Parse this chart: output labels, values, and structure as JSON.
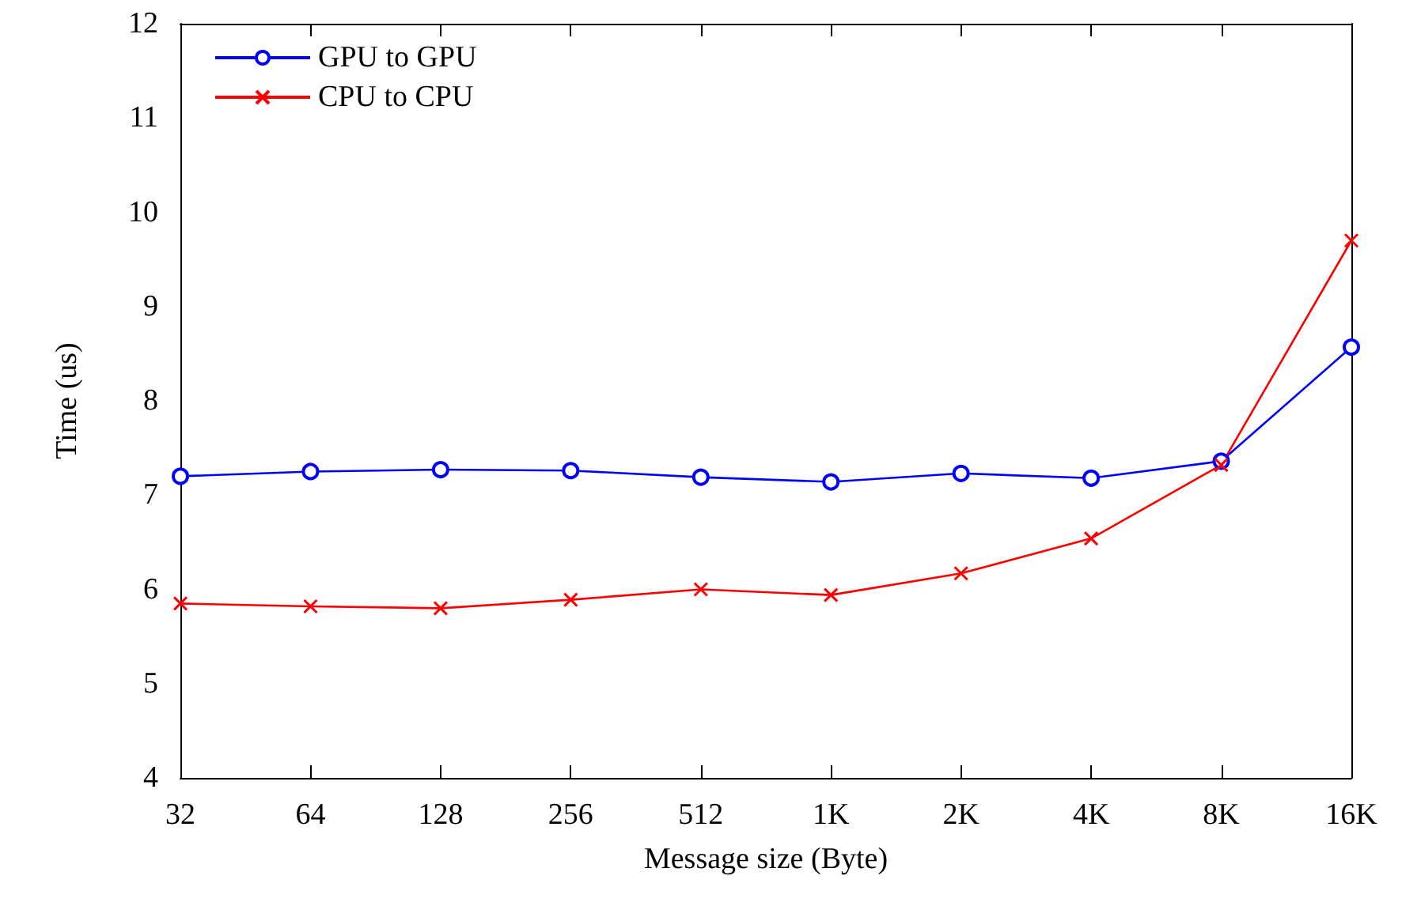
{
  "chart_data": {
    "type": "line",
    "xlabel": "Message size (Byte)",
    "ylabel": "Time (us)",
    "categories": [
      "32",
      "64",
      "128",
      "256",
      "512",
      "1K",
      "2K",
      "4K",
      "8K",
      "16K"
    ],
    "series": [
      {
        "name": "GPU to GPU",
        "color": "#0000ff",
        "marker": "circle",
        "values": [
          7.2,
          7.25,
          7.27,
          7.26,
          7.19,
          7.14,
          7.23,
          7.18,
          7.36,
          8.57
        ]
      },
      {
        "name": "CPU to CPU",
        "color": "#ff0000",
        "marker": "cross",
        "values": [
          5.85,
          5.82,
          5.8,
          5.89,
          6.0,
          5.94,
          6.17,
          6.54,
          7.32,
          9.7
        ]
      }
    ],
    "ylim": [
      4,
      12
    ],
    "yticks": [
      4,
      5,
      6,
      7,
      8,
      9,
      10,
      11,
      12
    ],
    "grid": false,
    "legend": "top left",
    "line_style": "solid"
  }
}
